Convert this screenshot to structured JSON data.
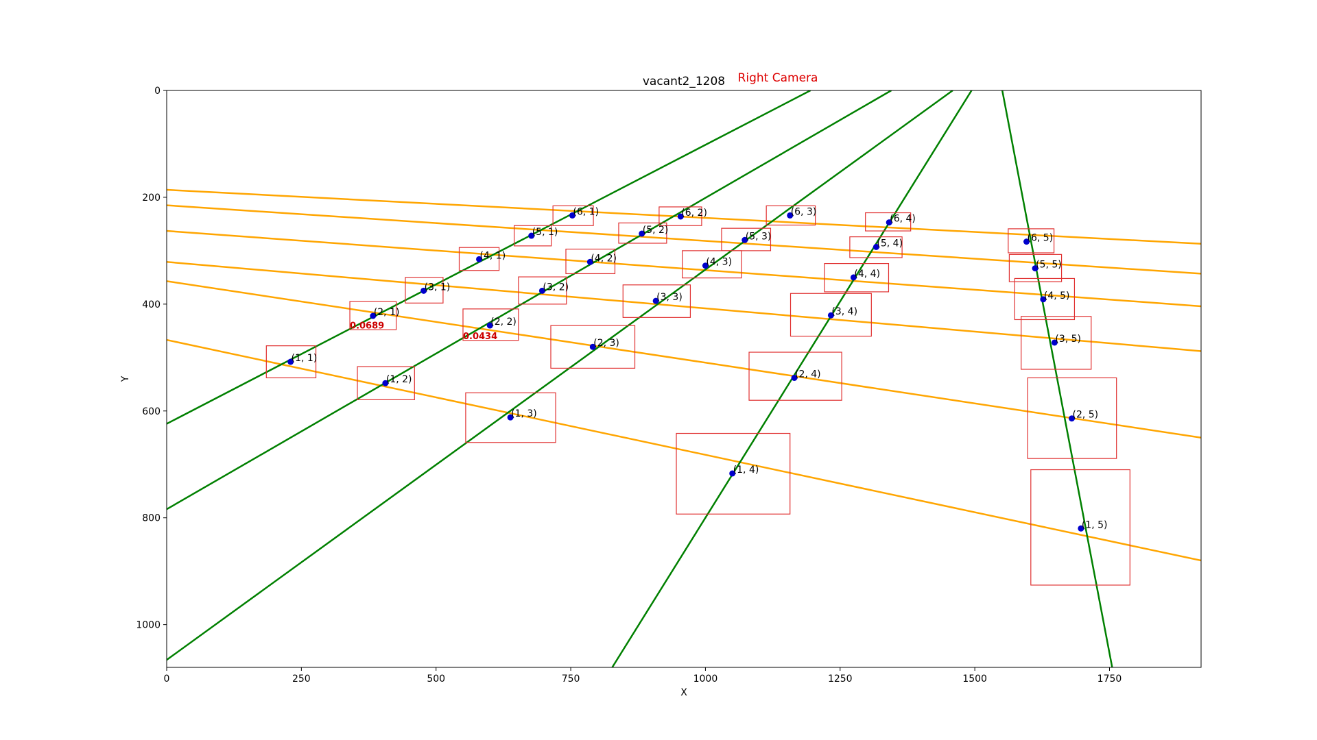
{
  "chart_data": {
    "type": "scatter",
    "title": "vacant2_1208",
    "subtitle": "Right Camera",
    "xlabel": "X",
    "ylabel": "Y",
    "xlim": [
      0,
      1920
    ],
    "ylim": [
      1080,
      0
    ],
    "x_ticks": [
      0,
      250,
      500,
      750,
      1000,
      1250,
      1500,
      1750
    ],
    "y_ticks": [
      0,
      200,
      400,
      600,
      800,
      1000
    ],
    "colors": {
      "point": "#0000cc",
      "box": "#e03030",
      "row_line": "#ffa500",
      "col_line": "#008000",
      "subtitle": "#dd0000",
      "score": "#cc0000"
    },
    "points": [
      {
        "label": "(1, 1)",
        "x": 230,
        "y": 508
      },
      {
        "label": "(1, 2)",
        "x": 406,
        "y": 548
      },
      {
        "label": "(1, 3)",
        "x": 638,
        "y": 612
      },
      {
        "label": "(1, 4)",
        "x": 1050,
        "y": 717
      },
      {
        "label": "(1, 5)",
        "x": 1697,
        "y": 820
      },
      {
        "label": "(2, 1)",
        "x": 383,
        "y": 422
      },
      {
        "label": "(2, 2)",
        "x": 600,
        "y": 440
      },
      {
        "label": "(2, 3)",
        "x": 791,
        "y": 480
      },
      {
        "label": "(2, 4)",
        "x": 1165,
        "y": 538
      },
      {
        "label": "(2, 5)",
        "x": 1680,
        "y": 614
      },
      {
        "label": "(3, 1)",
        "x": 477,
        "y": 375
      },
      {
        "label": "(3, 2)",
        "x": 697,
        "y": 375
      },
      {
        "label": "(3, 3)",
        "x": 908,
        "y": 394
      },
      {
        "label": "(3, 4)",
        "x": 1233,
        "y": 421
      },
      {
        "label": "(3, 5)",
        "x": 1648,
        "y": 472
      },
      {
        "label": "(4, 1)",
        "x": 580,
        "y": 316
      },
      {
        "label": "(4, 2)",
        "x": 786,
        "y": 321
      },
      {
        "label": "(4, 3)",
        "x": 1000,
        "y": 328
      },
      {
        "label": "(4, 4)",
        "x": 1275,
        "y": 350
      },
      {
        "label": "(4, 5)",
        "x": 1627,
        "y": 391
      },
      {
        "label": "(5, 1)",
        "x": 677,
        "y": 272
      },
      {
        "label": "(5, 2)",
        "x": 882,
        "y": 268
      },
      {
        "label": "(5, 3)",
        "x": 1073,
        "y": 280
      },
      {
        "label": "(5, 4)",
        "x": 1317,
        "y": 293
      },
      {
        "label": "(5, 5)",
        "x": 1612,
        "y": 333
      },
      {
        "label": "(6, 1)",
        "x": 753,
        "y": 234
      },
      {
        "label": "(6, 2)",
        "x": 954,
        "y": 236
      },
      {
        "label": "(6, 3)",
        "x": 1157,
        "y": 234
      },
      {
        "label": "(6, 4)",
        "x": 1341,
        "y": 247
      },
      {
        "label": "(6, 5)",
        "x": 1596,
        "y": 283
      }
    ],
    "boxes": [
      {
        "x1": 185,
        "y1": 478,
        "x2": 277,
        "y2": 538
      },
      {
        "x1": 354,
        "y1": 517,
        "x2": 460,
        "y2": 579
      },
      {
        "x1": 555,
        "y1": 566,
        "x2": 722,
        "y2": 659
      },
      {
        "x1": 946,
        "y1": 642,
        "x2": 1157,
        "y2": 793
      },
      {
        "x1": 1604,
        "y1": 710,
        "x2": 1788,
        "y2": 926
      },
      {
        "x1": 340,
        "y1": 395,
        "x2": 426,
        "y2": 448
      },
      {
        "x1": 550,
        "y1": 409,
        "x2": 653,
        "y2": 468
      },
      {
        "x1": 713,
        "y1": 440,
        "x2": 869,
        "y2": 520
      },
      {
        "x1": 1081,
        "y1": 490,
        "x2": 1253,
        "y2": 580
      },
      {
        "x1": 1598,
        "y1": 538,
        "x2": 1763,
        "y2": 689
      },
      {
        "x1": 443,
        "y1": 350,
        "x2": 513,
        "y2": 398
      },
      {
        "x1": 653,
        "y1": 349,
        "x2": 742,
        "y2": 400
      },
      {
        "x1": 847,
        "y1": 364,
        "x2": 972,
        "y2": 425
      },
      {
        "x1": 1158,
        "y1": 380,
        "x2": 1308,
        "y2": 460
      },
      {
        "x1": 1586,
        "y1": 423,
        "x2": 1716,
        "y2": 522
      },
      {
        "x1": 543,
        "y1": 294,
        "x2": 617,
        "y2": 337
      },
      {
        "x1": 741,
        "y1": 297,
        "x2": 832,
        "y2": 343
      },
      {
        "x1": 957,
        "y1": 300,
        "x2": 1067,
        "y2": 351
      },
      {
        "x1": 1221,
        "y1": 324,
        "x2": 1340,
        "y2": 377
      },
      {
        "x1": 1574,
        "y1": 352,
        "x2": 1685,
        "y2": 429
      },
      {
        "x1": 645,
        "y1": 253,
        "x2": 714,
        "y2": 291
      },
      {
        "x1": 839,
        "y1": 248,
        "x2": 928,
        "y2": 286
      },
      {
        "x1": 1030,
        "y1": 258,
        "x2": 1121,
        "y2": 300
      },
      {
        "x1": 1268,
        "y1": 274,
        "x2": 1365,
        "y2": 313
      },
      {
        "x1": 1564,
        "y1": 307,
        "x2": 1661,
        "y2": 358
      },
      {
        "x1": 717,
        "y1": 216,
        "x2": 792,
        "y2": 253
      },
      {
        "x1": 914,
        "y1": 218,
        "x2": 993,
        "y2": 253
      },
      {
        "x1": 1113,
        "y1": 216,
        "x2": 1204,
        "y2": 252
      },
      {
        "x1": 1297,
        "y1": 229,
        "x2": 1381,
        "y2": 263
      },
      {
        "x1": 1562,
        "y1": 259,
        "x2": 1647,
        "y2": 304
      }
    ],
    "row_lines": [
      {
        "x1": 0,
        "y1": 467,
        "x2": 1920,
        "y2": 880
      },
      {
        "x1": 0,
        "y1": 357,
        "x2": 1920,
        "y2": 650
      },
      {
        "x1": 0,
        "y1": 321,
        "x2": 1920,
        "y2": 488
      },
      {
        "x1": 0,
        "y1": 263,
        "x2": 1920,
        "y2": 404
      },
      {
        "x1": 0,
        "y1": 215,
        "x2": 1920,
        "y2": 343
      },
      {
        "x1": 0,
        "y1": 186,
        "x2": 1920,
        "y2": 287
      }
    ],
    "col_lines": [
      {
        "x1": 0,
        "y1": 624,
        "x2": 1195,
        "y2": 0
      },
      {
        "x1": 0,
        "y1": 784,
        "x2": 1345,
        "y2": 0
      },
      {
        "x1": 0,
        "y1": 1066,
        "x2": 1459,
        "y2": 0
      },
      {
        "x1": 827,
        "y1": 1080,
        "x2": 1494,
        "y2": 0
      },
      {
        "x1": 1551,
        "y1": 0,
        "x2": 1755,
        "y2": 1080
      }
    ],
    "scores": [
      {
        "text": "0.0689",
        "x": 340,
        "y": 448
      },
      {
        "text": "0.0434",
        "x": 550,
        "y": 468
      }
    ]
  }
}
